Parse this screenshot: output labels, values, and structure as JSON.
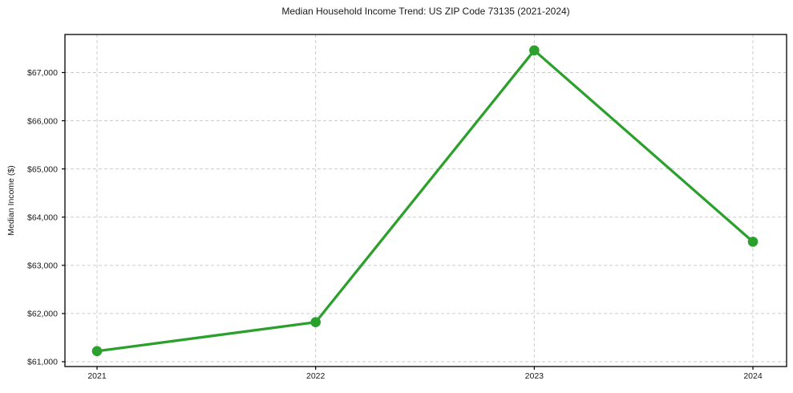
{
  "chart_data": {
    "type": "line",
    "title": "Median Household Income Trend: US ZIP Code 73135 (2021-2024)",
    "xlabel": "",
    "ylabel": "Median Income ($)",
    "categories": [
      "2021",
      "2022",
      "2023",
      "2024"
    ],
    "series": [
      {
        "name": "Median Household Income",
        "values": [
          61220,
          61820,
          67460,
          63490
        ]
      }
    ],
    "ylim": [
      60900,
      67790
    ],
    "yticks": [
      61000,
      62000,
      63000,
      64000,
      65000,
      66000,
      67000
    ],
    "ytick_labels": [
      "$61,000",
      "$62,000",
      "$63,000",
      "$64,000",
      "$65,000",
      "$66,000",
      "$67,000"
    ],
    "grid": true,
    "legend": "none",
    "marker": "circle",
    "colors": {
      "line": "#2ca02c",
      "grid": "#cccccc",
      "axis": "#000000",
      "background": "#ffffff",
      "text": "#1a1a1a"
    }
  }
}
